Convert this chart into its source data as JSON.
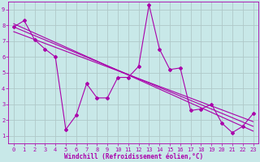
{
  "xlabel": "Windchill (Refroidissement éolien,°C)",
  "bg_color": "#c8e8e8",
  "line_color": "#aa00aa",
  "xlim": [
    -0.5,
    23.5
  ],
  "ylim": [
    0.5,
    9.5
  ],
  "xticks": [
    0,
    1,
    2,
    3,
    4,
    5,
    6,
    7,
    8,
    9,
    10,
    11,
    12,
    13,
    14,
    15,
    16,
    17,
    18,
    19,
    20,
    21,
    22,
    23
  ],
  "yticks": [
    1,
    2,
    3,
    4,
    5,
    6,
    7,
    8,
    9
  ],
  "grid_color": "#b0c8c8",
  "series_x": [
    0,
    1,
    2,
    3,
    4,
    5,
    6,
    7,
    8,
    9,
    10,
    11,
    12,
    13,
    14,
    15,
    16,
    17,
    18,
    19,
    20,
    21,
    22,
    23
  ],
  "series_y": [
    7.9,
    8.3,
    7.1,
    6.5,
    6.0,
    1.4,
    2.3,
    4.3,
    3.4,
    3.4,
    4.7,
    4.7,
    5.4,
    9.3,
    6.5,
    5.2,
    5.3,
    2.6,
    2.7,
    3.0,
    1.8,
    1.2,
    1.6,
    2.4
  ],
  "reg_lines": [
    {
      "x": [
        0,
        23
      ],
      "y": [
        7.9,
        1.6
      ]
    },
    {
      "x": [
        0,
        23
      ],
      "y": [
        7.6,
        1.9
      ]
    },
    {
      "x": [
        0,
        23
      ],
      "y": [
        8.1,
        1.3
      ]
    }
  ],
  "tick_fontsize": 5,
  "xlabel_fontsize": 5.5
}
